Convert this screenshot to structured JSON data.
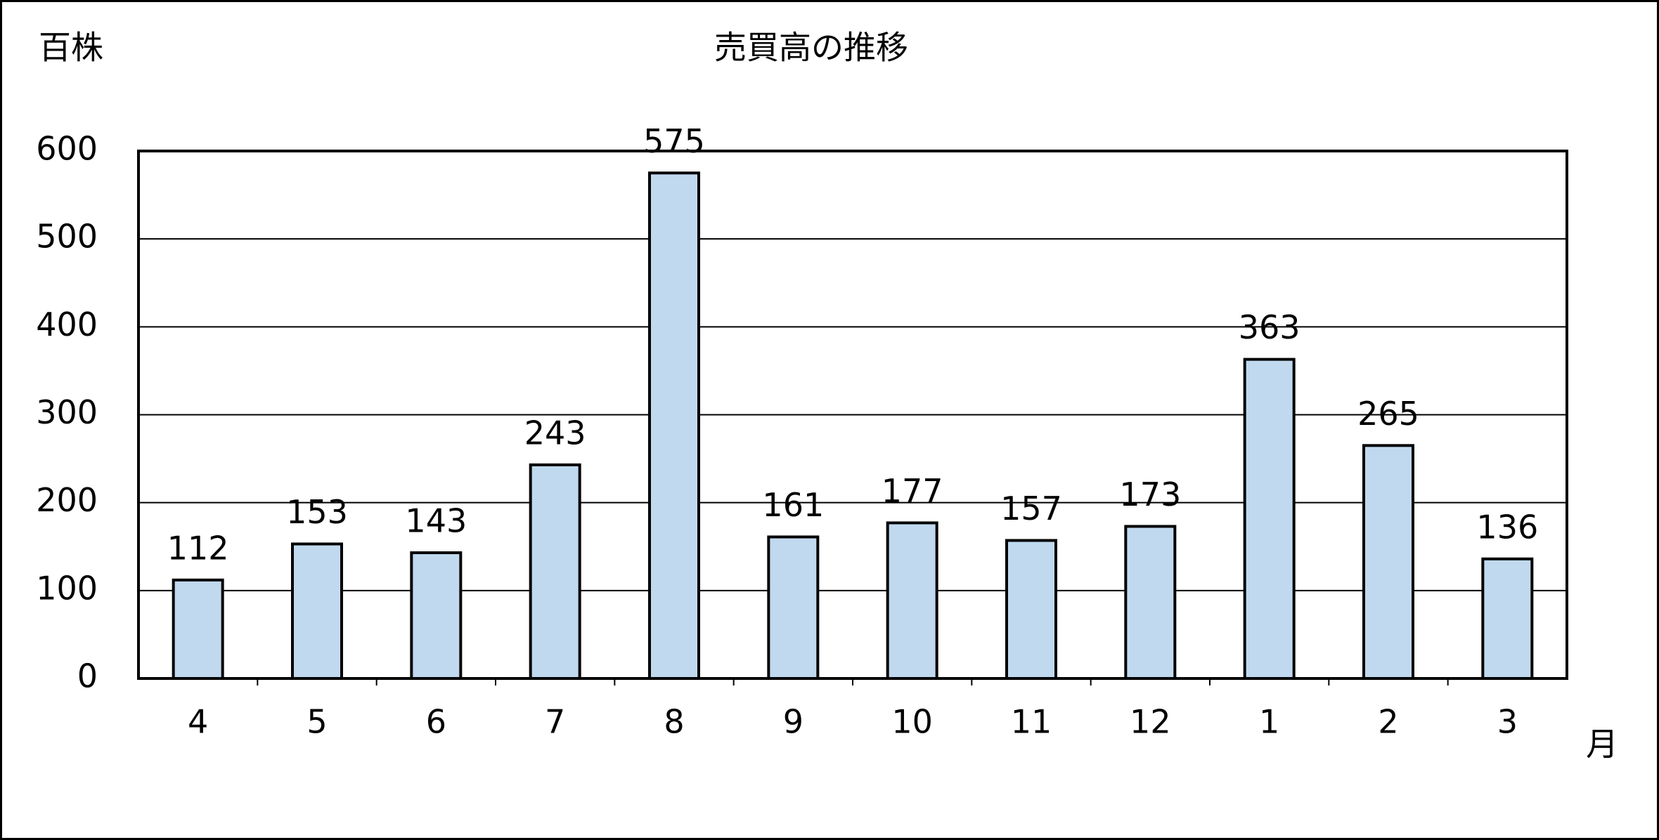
{
  "chart_data": {
    "type": "bar",
    "title": "売買高の推移",
    "y_unit": "百株",
    "x_unit": "月",
    "categories": [
      "4",
      "5",
      "6",
      "7",
      "8",
      "9",
      "10",
      "11",
      "12",
      "1",
      "2",
      "3"
    ],
    "values": [
      112,
      153,
      143,
      243,
      575,
      161,
      177,
      157,
      173,
      363,
      265,
      136
    ],
    "color": "#c0d9ef",
    "ylim": [
      0,
      600
    ],
    "yticks": [
      0,
      100,
      200,
      300,
      400,
      500,
      600
    ],
    "grid": true
  }
}
